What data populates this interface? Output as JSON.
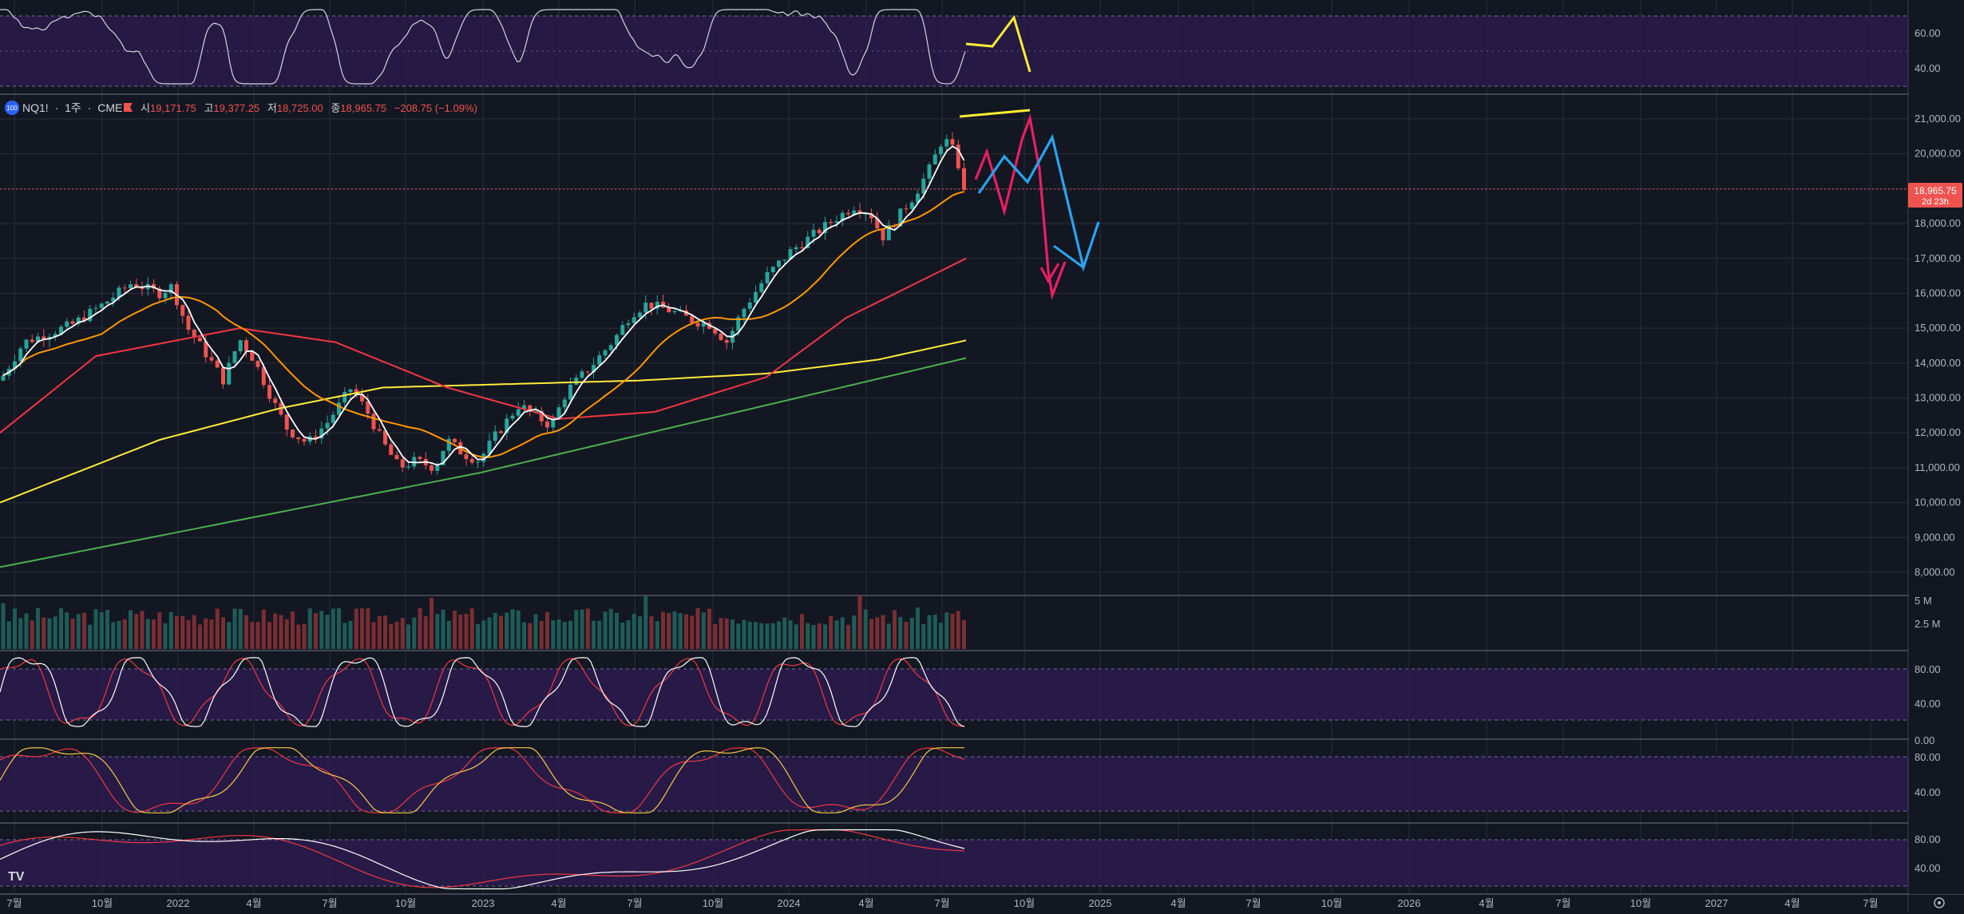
{
  "symbol": {
    "ticker": "NQ1!",
    "interval": "1주",
    "exchange": "CME",
    "separator": "·",
    "label_open": "시",
    "open": "19,171.75",
    "label_high": "고",
    "high": "19,377.25",
    "label_low": "저",
    "low": "18,725.00",
    "label_close": "종",
    "close": "18,965.75",
    "change": "−208.75 (−1.09%)",
    "badge": "100"
  },
  "last_price": {
    "value": "18,965.75",
    "countdown": "2d 23h"
  },
  "colors": {
    "background": "#131722",
    "up": "#26a69a",
    "down": "#ef5350",
    "grid": "#2a2e39",
    "band": "#2a1b4a",
    "ma_fast": "#ffffff",
    "ma_20": "#ff9800",
    "ma_60": "#f23645",
    "ma_120": "#ffeb3b",
    "ma_240": "#4caf50",
    "stoch_k": "#ffffff",
    "stoch_d": "#f23645",
    "stoch2_k": "#f7c948",
    "drawing_pink": "#e91e63",
    "drawing_blue": "#29a3f0",
    "drawing_yellow": "#ffee33"
  },
  "time_axis": {
    "labels": [
      "7월",
      "10월",
      "2022",
      "4월",
      "7월",
      "10월",
      "2023",
      "4월",
      "7월",
      "10월",
      "2024",
      "4월",
      "7월",
      "10월",
      "2025",
      "4월",
      "7월",
      "10월",
      "2026",
      "4월",
      "7월",
      "10월",
      "2027",
      "4월",
      "7월"
    ]
  },
  "price_axis": {
    "labels": [
      "21,000.00",
      "20,000.00",
      "19,000.00",
      "18,000.00",
      "17,000.00",
      "16,000.00",
      "15,000.00",
      "14,000.00",
      "13,000.00",
      "12,000.00",
      "11,000.00",
      "10,000.00",
      "9,000.00",
      "8,000.00"
    ]
  },
  "volume_axis": {
    "labels": [
      "5 M",
      "2.5 M"
    ]
  },
  "osc_axes": {
    "rsi": [
      "60.00",
      "40.00"
    ],
    "stoch1": [
      "80.00",
      "40.00"
    ],
    "stoch2": [
      "0.00",
      "80.00",
      "40.00"
    ],
    "stoch3": [
      "80.00",
      "40.00"
    ]
  },
  "logo_text": "TV",
  "chart_data": {
    "type": "candlestick",
    "price_range": [
      7500,
      22200
    ],
    "time_start": "2021-06",
    "time_end": "2027-08",
    "last_close": 18965.75
  }
}
